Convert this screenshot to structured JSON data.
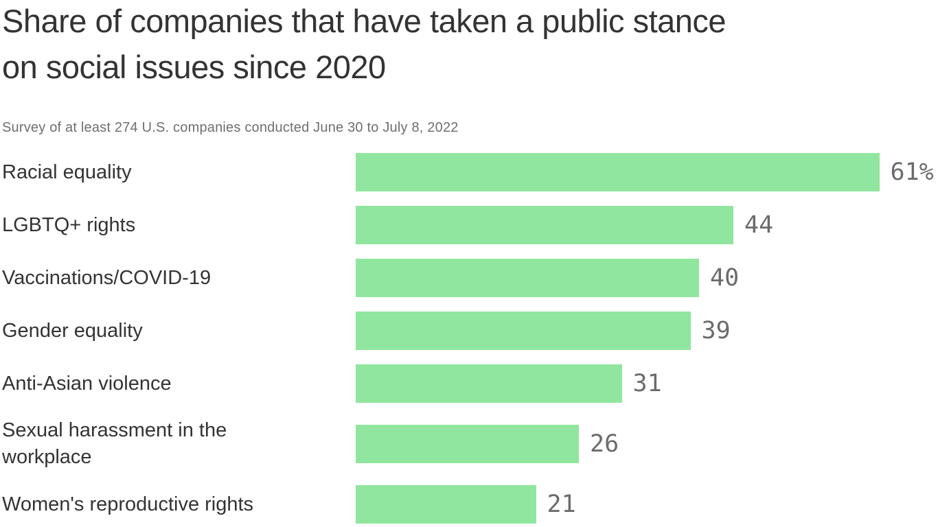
{
  "page": {
    "title_line1": "Share of companies that have taken a public stance",
    "title_line2": "on social issues since 2020",
    "subtitle": "Survey of at least 274 U.S. companies conducted June 30 to July 8, 2022"
  },
  "chart_data": {
    "type": "bar",
    "orientation": "horizontal",
    "title": "Share of companies that have taken a public stance on social issues since 2020",
    "subtitle": "Survey of at least 274 U.S. companies conducted June 30 to July 8, 2022",
    "categories": [
      "Racial equality",
      "LGBTQ+ rights",
      "Vaccinations/COVID-19",
      "Gender equality",
      "Anti-Asian violence",
      "Sexual harassment in the workplace",
      "Women's reproductive rights"
    ],
    "values": [
      61,
      44,
      40,
      39,
      31,
      26,
      21
    ],
    "value_labels": [
      "61%",
      "44",
      "40",
      "39",
      "31",
      "26",
      "21"
    ],
    "unit": "percent",
    "xlim": [
      0,
      61
    ],
    "grid": false,
    "legend": false,
    "bar_color": "#90e69e",
    "category_label_color": "#333333",
    "value_label_color": "#6b6b6b"
  }
}
